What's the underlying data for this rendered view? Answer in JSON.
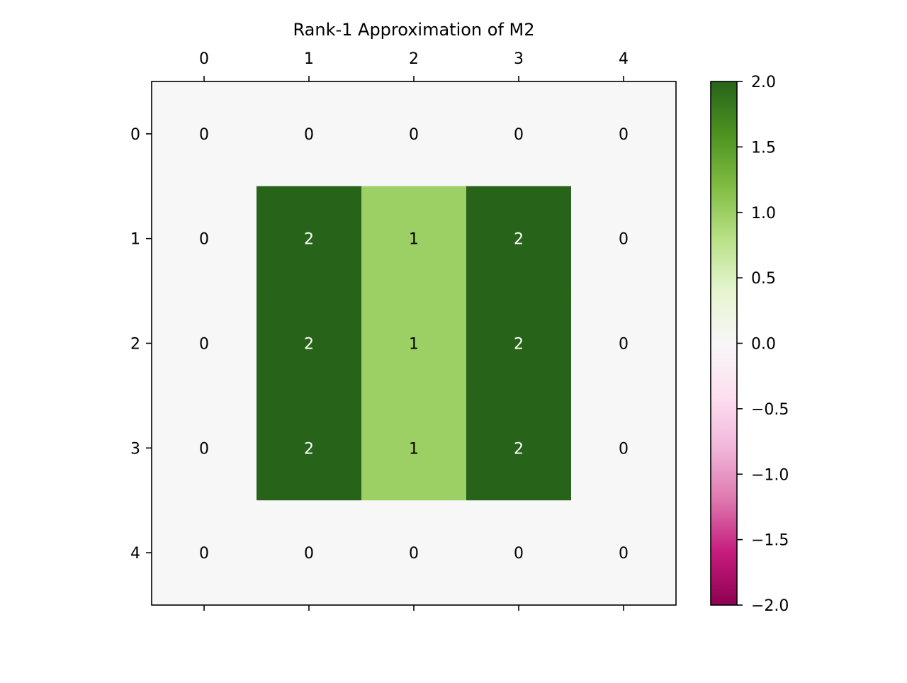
{
  "chart_data": {
    "type": "heatmap",
    "title": "Rank-1 Approximation of M2",
    "xlabel": "",
    "ylabel": "",
    "x_ticks": [
      "0",
      "1",
      "2",
      "3",
      "4"
    ],
    "y_ticks": [
      "0",
      "1",
      "2",
      "3",
      "4"
    ],
    "values": [
      [
        0,
        0,
        0,
        0,
        0
      ],
      [
        0,
        2,
        1,
        2,
        0
      ],
      [
        0,
        2,
        1,
        2,
        0
      ],
      [
        0,
        2,
        1,
        2,
        0
      ],
      [
        0,
        0,
        0,
        0,
        0
      ]
    ],
    "cell_labels": [
      [
        "0",
        "0",
        "0",
        "0",
        "0"
      ],
      [
        "0",
        "2",
        "1",
        "2",
        "0"
      ],
      [
        "0",
        "2",
        "1",
        "2",
        "0"
      ],
      [
        "0",
        "2",
        "1",
        "2",
        "0"
      ],
      [
        "0",
        "0",
        "0",
        "0",
        "0"
      ]
    ],
    "colormap": "PiYG",
    "colorbar": {
      "range": [
        -2.0,
        2.0
      ],
      "ticks": [
        2.0,
        1.5,
        1.0,
        0.5,
        0.0,
        -0.5,
        -1.0,
        -1.5,
        -2.0
      ],
      "tick_labels": [
        "2.0",
        "1.5",
        "1.0",
        "0.5",
        "0.0",
        "−0.5",
        "−1.0",
        "−1.5",
        "−2.0"
      ],
      "stops": [
        "#8e0152",
        "#c51b7d",
        "#de77ae",
        "#f1b6da",
        "#fde0ef",
        "#f7f7f7",
        "#e6f5d0",
        "#b8e186",
        "#7fbc41",
        "#4d9221",
        "#276419"
      ]
    },
    "x_tick_position": "top-and-bottom",
    "x_tick_labels_position": "top",
    "grid": false
  }
}
